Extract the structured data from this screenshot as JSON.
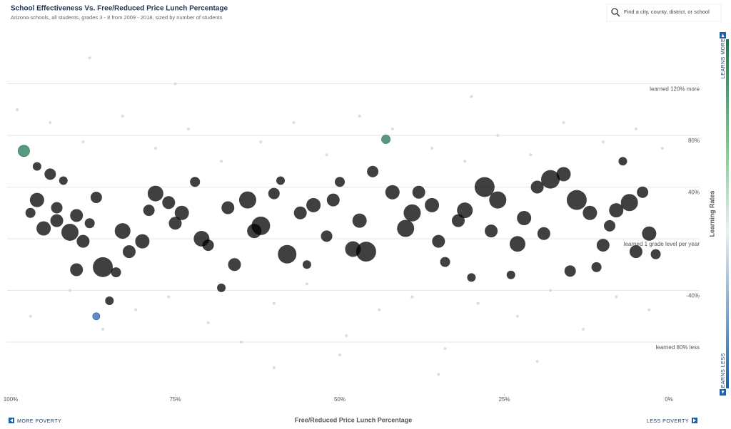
{
  "chart_data": {
    "type": "scatter",
    "title": "School Effectiveness Vs. Free/Reduced Price Lunch Percentage",
    "subtitle": "Arizona schools, all students, grades 3 - 8 from 2009 - 2018, sized by number of students",
    "search_placeholder": "Find a city, county, district, or school",
    "x_label": "Free/Reduced Price Lunch Percentage",
    "y_label": "Learning Rates",
    "x_left_note": "MORE POVERTY",
    "x_right_note": "LESS POVERTY",
    "y_top_note": "LEARNS MORE",
    "y_bottom_note": "LEARNS LESS",
    "xlim": [
      100,
      0
    ],
    "ylim": [
      -120,
      160
    ],
    "xticks": [
      {
        "value": 100,
        "label": "100%"
      },
      {
        "value": 75,
        "label": "75%"
      },
      {
        "value": 50,
        "label": "50%"
      },
      {
        "value": 25,
        "label": "25%"
      },
      {
        "value": 0,
        "label": "0%"
      }
    ],
    "yticks": [
      {
        "value": 120,
        "label": "learned 120% more"
      },
      {
        "value": 80,
        "label": "80%"
      },
      {
        "value": 40,
        "label": "40%"
      },
      {
        "value": 0,
        "label": "learned 1 grade level per year"
      },
      {
        "value": -40,
        "label": "-40%"
      },
      {
        "value": -80,
        "label": "learned 80% less"
      }
    ],
    "grid": true,
    "series": [
      {
        "color": "#dcdcdc",
        "x": [
          99,
          97,
          94,
          91,
          89,
          86,
          83,
          81,
          78,
          76,
          73,
          70,
          68,
          65,
          62,
          60,
          57,
          55,
          52,
          49,
          47,
          44,
          42,
          39,
          36,
          34,
          31,
          29,
          26,
          23,
          21,
          18,
          16,
          13,
          10,
          8,
          5,
          3,
          1,
          60,
          35,
          75,
          20,
          50,
          88,
          30
        ],
        "values": [
          100,
          -60,
          90,
          -40,
          75,
          -70,
          95,
          -55,
          70,
          -45,
          85,
          -65,
          60,
          -80,
          75,
          -50,
          90,
          -35,
          65,
          -75,
          95,
          -55,
          85,
          -45,
          70,
          -85,
          60,
          -50,
          80,
          -60,
          65,
          -40,
          90,
          -70,
          75,
          -45,
          85,
          -55,
          70,
          -100,
          -105,
          120,
          -95,
          -90,
          140,
          110
        ]
      },
      {
        "x": [
          98,
          96,
          94,
          92,
          96,
          93,
          90,
          88,
          95,
          91,
          86,
          90,
          84,
          87,
          85,
          82,
          80,
          78,
          76,
          74,
          72,
          70,
          68,
          66,
          64,
          62,
          60,
          58,
          56,
          54,
          52,
          50,
          48,
          46,
          45,
          43,
          40,
          38,
          36,
          34,
          32,
          30,
          28,
          26,
          24,
          22,
          20,
          18,
          16,
          14,
          12,
          10,
          8,
          6,
          4,
          3,
          5,
          2,
          7,
          9,
          11,
          15,
          19,
          23,
          27,
          31,
          35,
          39,
          42,
          47,
          51,
          55,
          59,
          63,
          67,
          71,
          75,
          79,
          83,
          87,
          89,
          93,
          97
        ],
        "values": [
          68,
          56,
          50,
          45,
          30,
          24,
          18,
          12,
          8,
          5,
          -22,
          -24,
          -26,
          -60,
          -48,
          -10,
          -2,
          35,
          28,
          20,
          44,
          -5,
          -38,
          -20,
          30,
          10,
          35,
          -12,
          20,
          26,
          2,
          44,
          -8,
          -10,
          52,
          77,
          8,
          36,
          26,
          -18,
          14,
          -30,
          40,
          30,
          -28,
          16,
          40,
          46,
          50,
          30,
          20,
          -5,
          22,
          28,
          36,
          4,
          -10,
          -12,
          60,
          10,
          -22,
          -25,
          4,
          -4,
          6,
          22,
          -2,
          20,
          36,
          14,
          30,
          -20,
          45,
          6,
          24,
          0,
          12,
          22,
          6,
          32,
          -2,
          14,
          20
        ],
        "sizes": [
          8,
          6,
          8,
          6,
          10,
          8,
          9,
          7,
          10,
          12,
          14,
          9,
          7,
          5,
          6,
          9,
          10,
          11,
          9,
          10,
          7,
          8,
          6,
          9,
          12,
          13,
          8,
          13,
          9,
          10,
          8,
          7,
          11,
          14,
          8,
          6,
          12,
          9,
          10,
          7,
          9,
          6,
          14,
          12,
          6,
          10,
          9,
          13,
          10,
          14,
          10,
          9,
          10,
          12,
          8,
          10,
          9,
          7,
          6,
          8,
          7,
          8,
          9,
          11,
          9,
          11,
          9,
          12,
          10,
          10,
          9,
          6,
          6,
          10,
          9,
          11,
          9,
          8,
          11,
          8,
          9,
          9,
          7
        ]
      }
    ]
  }
}
